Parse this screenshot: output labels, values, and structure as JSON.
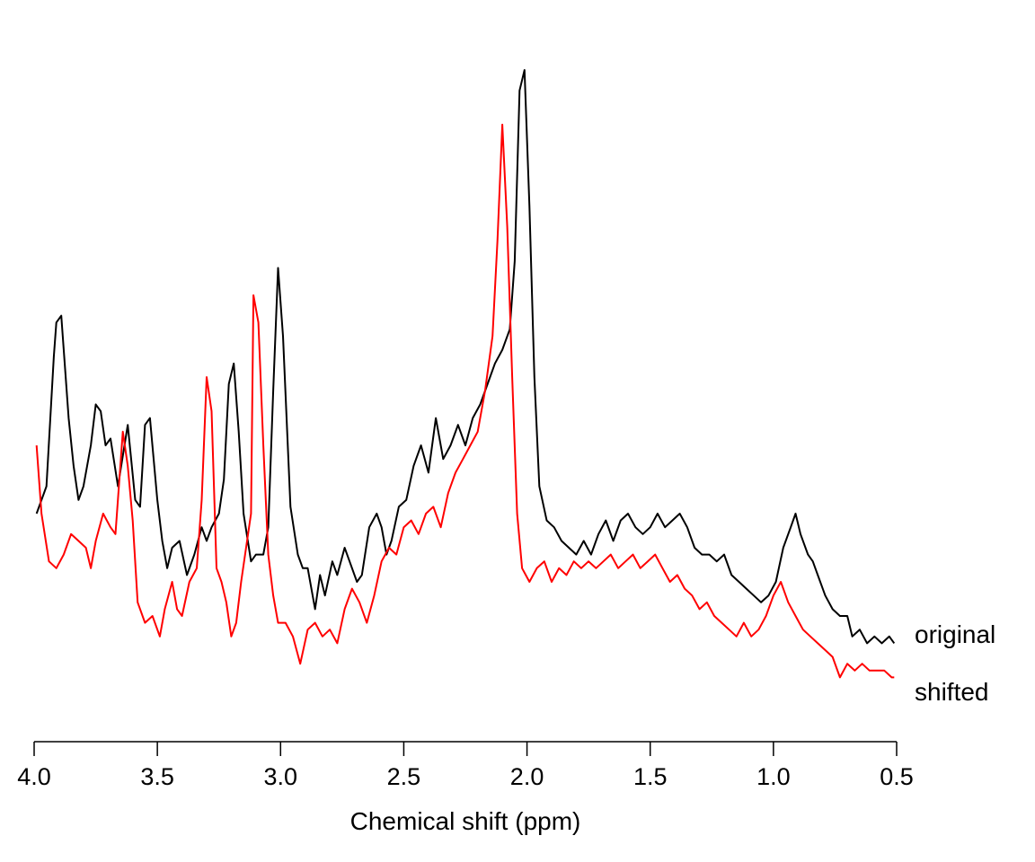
{
  "chart_data": {
    "type": "line",
    "xlabel": "Chemical shift (ppm)",
    "ylabel": "",
    "title": "",
    "xlim": [
      4.0,
      0.5
    ],
    "x_reversed": true,
    "y_axis_shown": false,
    "grid": false,
    "xticks": [
      4.0,
      3.5,
      3.0,
      2.5,
      2.0,
      1.5,
      1.0,
      0.5
    ],
    "xtick_labels": [
      "4.0",
      "3.5",
      "3.0",
      "2.5",
      "2.0",
      "1.5",
      "1.0",
      "0.5"
    ],
    "ylim": [
      0,
      100
    ],
    "series_labels_position": "right-end",
    "series": [
      {
        "name": "original",
        "color": "#000000",
        "points": [
          [
            3.99,
            30
          ],
          [
            3.95,
            34
          ],
          [
            3.92,
            53
          ],
          [
            3.91,
            58
          ],
          [
            3.89,
            59
          ],
          [
            3.86,
            44
          ],
          [
            3.84,
            37
          ],
          [
            3.82,
            32
          ],
          [
            3.8,
            34
          ],
          [
            3.77,
            40
          ],
          [
            3.75,
            46
          ],
          [
            3.73,
            45
          ],
          [
            3.71,
            40
          ],
          [
            3.69,
            41
          ],
          [
            3.66,
            34
          ],
          [
            3.62,
            43
          ],
          [
            3.59,
            32
          ],
          [
            3.57,
            31
          ],
          [
            3.55,
            43
          ],
          [
            3.53,
            44
          ],
          [
            3.5,
            32
          ],
          [
            3.48,
            26
          ],
          [
            3.46,
            22
          ],
          [
            3.44,
            25
          ],
          [
            3.41,
            26
          ],
          [
            3.38,
            21
          ],
          [
            3.35,
            24
          ],
          [
            3.32,
            28
          ],
          [
            3.3,
            26
          ],
          [
            3.28,
            28
          ],
          [
            3.25,
            30
          ],
          [
            3.23,
            35
          ],
          [
            3.21,
            49
          ],
          [
            3.19,
            52
          ],
          [
            3.17,
            42
          ],
          [
            3.15,
            30
          ],
          [
            3.12,
            23
          ],
          [
            3.1,
            24
          ],
          [
            3.07,
            24
          ],
          [
            3.05,
            28
          ],
          [
            3.03,
            48
          ],
          [
            3.01,
            66
          ],
          [
            2.99,
            56
          ],
          [
            2.96,
            31
          ],
          [
            2.93,
            24
          ],
          [
            2.91,
            22
          ],
          [
            2.89,
            22
          ],
          [
            2.86,
            16
          ],
          [
            2.84,
            21
          ],
          [
            2.82,
            18
          ],
          [
            2.79,
            23
          ],
          [
            2.77,
            21
          ],
          [
            2.74,
            25
          ],
          [
            2.72,
            23
          ],
          [
            2.69,
            20
          ],
          [
            2.67,
            21
          ],
          [
            2.64,
            28
          ],
          [
            2.61,
            30
          ],
          [
            2.59,
            28
          ],
          [
            2.57,
            24
          ],
          [
            2.55,
            26
          ],
          [
            2.52,
            31
          ],
          [
            2.49,
            32
          ],
          [
            2.46,
            37
          ],
          [
            2.43,
            40
          ],
          [
            2.4,
            36
          ],
          [
            2.37,
            44
          ],
          [
            2.34,
            38
          ],
          [
            2.31,
            40
          ],
          [
            2.28,
            43
          ],
          [
            2.25,
            40
          ],
          [
            2.22,
            44
          ],
          [
            2.19,
            46
          ],
          [
            2.16,
            49
          ],
          [
            2.13,
            52
          ],
          [
            2.1,
            54
          ],
          [
            2.07,
            57
          ],
          [
            2.05,
            67
          ],
          [
            2.03,
            92
          ],
          [
            2.01,
            95
          ],
          [
            1.99,
            75
          ],
          [
            1.97,
            50
          ],
          [
            1.95,
            34
          ],
          [
            1.92,
            29
          ],
          [
            1.89,
            28
          ],
          [
            1.86,
            26
          ],
          [
            1.83,
            25
          ],
          [
            1.8,
            24
          ],
          [
            1.77,
            26
          ],
          [
            1.74,
            24
          ],
          [
            1.71,
            27
          ],
          [
            1.68,
            29
          ],
          [
            1.65,
            26
          ],
          [
            1.62,
            29
          ],
          [
            1.59,
            30
          ],
          [
            1.56,
            28
          ],
          [
            1.53,
            27
          ],
          [
            1.5,
            28
          ],
          [
            1.47,
            30
          ],
          [
            1.44,
            28
          ],
          [
            1.41,
            29
          ],
          [
            1.38,
            30
          ],
          [
            1.35,
            28
          ],
          [
            1.32,
            25
          ],
          [
            1.29,
            24
          ],
          [
            1.26,
            24
          ],
          [
            1.23,
            23
          ],
          [
            1.2,
            24
          ],
          [
            1.17,
            21
          ],
          [
            1.14,
            20
          ],
          [
            1.11,
            19
          ],
          [
            1.08,
            18
          ],
          [
            1.05,
            17
          ],
          [
            1.02,
            18
          ],
          [
            0.99,
            20
          ],
          [
            0.96,
            25
          ],
          [
            0.93,
            28
          ],
          [
            0.91,
            30
          ],
          [
            0.89,
            27
          ],
          [
            0.86,
            24
          ],
          [
            0.84,
            23
          ],
          [
            0.82,
            21
          ],
          [
            0.79,
            18
          ],
          [
            0.76,
            16
          ],
          [
            0.73,
            15
          ],
          [
            0.7,
            15
          ],
          [
            0.68,
            12
          ],
          [
            0.65,
            13
          ],
          [
            0.62,
            11
          ],
          [
            0.59,
            12
          ],
          [
            0.56,
            11
          ],
          [
            0.53,
            12
          ],
          [
            0.51,
            11
          ]
        ]
      },
      {
        "name": "shifted",
        "color": "#ff0000",
        "points": [
          [
            3.99,
            40
          ],
          [
            3.97,
            30
          ],
          [
            3.94,
            23
          ],
          [
            3.91,
            22
          ],
          [
            3.88,
            24
          ],
          [
            3.85,
            27
          ],
          [
            3.82,
            26
          ],
          [
            3.79,
            25
          ],
          [
            3.77,
            22
          ],
          [
            3.75,
            26
          ],
          [
            3.72,
            30
          ],
          [
            3.69,
            28
          ],
          [
            3.67,
            27
          ],
          [
            3.64,
            42
          ],
          [
            3.62,
            37
          ],
          [
            3.6,
            29
          ],
          [
            3.58,
            17
          ],
          [
            3.55,
            14
          ],
          [
            3.52,
            15
          ],
          [
            3.49,
            12
          ],
          [
            3.47,
            16
          ],
          [
            3.44,
            20
          ],
          [
            3.42,
            16
          ],
          [
            3.4,
            15
          ],
          [
            3.37,
            20
          ],
          [
            3.34,
            22
          ],
          [
            3.32,
            32
          ],
          [
            3.3,
            50
          ],
          [
            3.28,
            45
          ],
          [
            3.26,
            22
          ],
          [
            3.24,
            20
          ],
          [
            3.22,
            17
          ],
          [
            3.2,
            12
          ],
          [
            3.18,
            14
          ],
          [
            3.16,
            20
          ],
          [
            3.14,
            25
          ],
          [
            3.12,
            30
          ],
          [
            3.11,
            62
          ],
          [
            3.09,
            58
          ],
          [
            3.07,
            40
          ],
          [
            3.05,
            24
          ],
          [
            3.03,
            18
          ],
          [
            3.01,
            14
          ],
          [
            2.98,
            14
          ],
          [
            2.95,
            12
          ],
          [
            2.92,
            8
          ],
          [
            2.89,
            13
          ],
          [
            2.86,
            14
          ],
          [
            2.83,
            12
          ],
          [
            2.8,
            13
          ],
          [
            2.77,
            11
          ],
          [
            2.74,
            16
          ],
          [
            2.71,
            19
          ],
          [
            2.68,
            17
          ],
          [
            2.65,
            14
          ],
          [
            2.62,
            18
          ],
          [
            2.59,
            23
          ],
          [
            2.56,
            25
          ],
          [
            2.53,
            24
          ],
          [
            2.5,
            28
          ],
          [
            2.47,
            29
          ],
          [
            2.44,
            27
          ],
          [
            2.41,
            30
          ],
          [
            2.38,
            31
          ],
          [
            2.35,
            28
          ],
          [
            2.32,
            33
          ],
          [
            2.29,
            36
          ],
          [
            2.26,
            38
          ],
          [
            2.23,
            40
          ],
          [
            2.2,
            42
          ],
          [
            2.17,
            48
          ],
          [
            2.14,
            56
          ],
          [
            2.12,
            70
          ],
          [
            2.1,
            87
          ],
          [
            2.08,
            72
          ],
          [
            2.06,
            50
          ],
          [
            2.04,
            30
          ],
          [
            2.02,
            22
          ],
          [
            1.99,
            20
          ],
          [
            1.96,
            22
          ],
          [
            1.93,
            23
          ],
          [
            1.9,
            20
          ],
          [
            1.87,
            22
          ],
          [
            1.84,
            21
          ],
          [
            1.81,
            23
          ],
          [
            1.78,
            22
          ],
          [
            1.75,
            23
          ],
          [
            1.72,
            22
          ],
          [
            1.69,
            23
          ],
          [
            1.66,
            24
          ],
          [
            1.63,
            22
          ],
          [
            1.6,
            23
          ],
          [
            1.57,
            24
          ],
          [
            1.54,
            22
          ],
          [
            1.51,
            23
          ],
          [
            1.48,
            24
          ],
          [
            1.45,
            22
          ],
          [
            1.42,
            20
          ],
          [
            1.39,
            21
          ],
          [
            1.36,
            19
          ],
          [
            1.33,
            18
          ],
          [
            1.3,
            16
          ],
          [
            1.27,
            17
          ],
          [
            1.24,
            15
          ],
          [
            1.21,
            14
          ],
          [
            1.18,
            13
          ],
          [
            1.15,
            12
          ],
          [
            1.12,
            14
          ],
          [
            1.09,
            12
          ],
          [
            1.06,
            13
          ],
          [
            1.03,
            15
          ],
          [
            1.0,
            18
          ],
          [
            0.97,
            20
          ],
          [
            0.94,
            17
          ],
          [
            0.91,
            15
          ],
          [
            0.88,
            13
          ],
          [
            0.85,
            12
          ],
          [
            0.82,
            11
          ],
          [
            0.79,
            10
          ],
          [
            0.76,
            9
          ],
          [
            0.73,
            6
          ],
          [
            0.7,
            8
          ],
          [
            0.67,
            7
          ],
          [
            0.64,
            8
          ],
          [
            0.61,
            7
          ],
          [
            0.58,
            7
          ],
          [
            0.55,
            7
          ],
          [
            0.52,
            6
          ],
          [
            0.51,
            6
          ]
        ]
      }
    ]
  }
}
